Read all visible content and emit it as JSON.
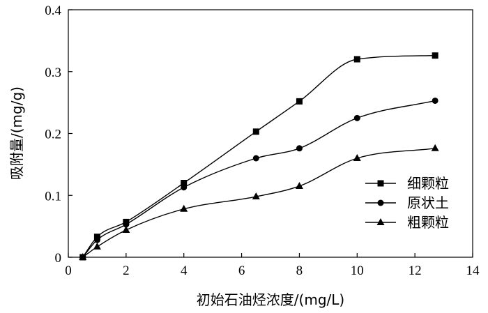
{
  "chart_data": {
    "type": "line",
    "title": "",
    "xlabel": "初始石油烃浓度/(mg/L)",
    "ylabel": "吸附量/(mg/g)",
    "xlim": [
      0,
      14
    ],
    "ylim": [
      0,
      0.4
    ],
    "xticks": [
      "0",
      "2",
      "4",
      "6",
      "8",
      "10",
      "12",
      "14"
    ],
    "yticks": [
      "0",
      "0.1",
      "0.2",
      "0.3",
      "0.4"
    ],
    "grid": false,
    "legend_position": "right",
    "series": [
      {
        "name": "细颗粒",
        "marker": "square",
        "x": [
          0.5,
          1,
          2,
          4,
          6.5,
          8,
          10,
          12.7
        ],
        "y": [
          0,
          0.033,
          0.057,
          0.12,
          0.203,
          0.252,
          0.32,
          0.326
        ]
      },
      {
        "name": "原状土",
        "marker": "circle",
        "x": [
          0.5,
          1,
          2,
          4,
          6.5,
          8,
          10,
          12.7
        ],
        "y": [
          0,
          0.028,
          0.053,
          0.113,
          0.16,
          0.176,
          0.225,
          0.253
        ]
      },
      {
        "name": "粗颗粒",
        "marker": "triangle",
        "x": [
          0.5,
          1,
          2,
          4,
          6.5,
          8,
          10,
          12.7
        ],
        "y": [
          0,
          0.017,
          0.044,
          0.078,
          0.098,
          0.115,
          0.16,
          0.176
        ]
      }
    ]
  }
}
